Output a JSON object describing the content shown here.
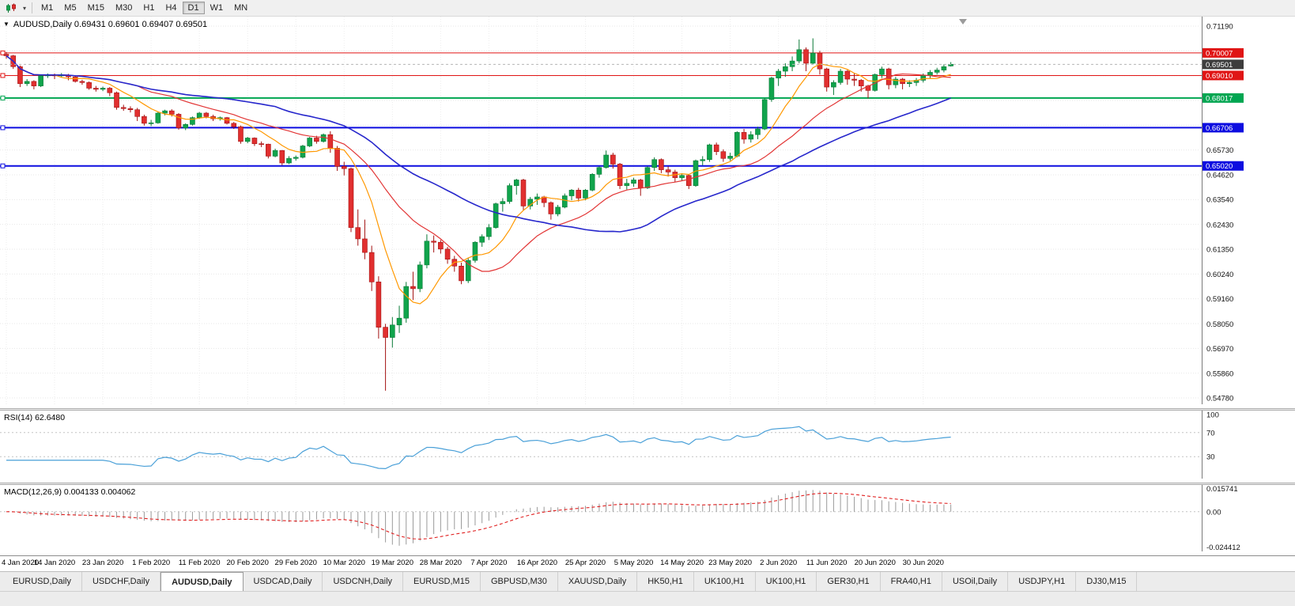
{
  "toolbar": {
    "chart_type_tool": "candlestick-chart",
    "timeframes": [
      "M1",
      "M5",
      "M15",
      "M30",
      "H1",
      "H4",
      "D1",
      "W1",
      "MN"
    ],
    "active_timeframe": "D1"
  },
  "chart": {
    "title": "AUDUSD,Daily 0.69431 0.69601 0.69407 0.69501",
    "symbol": "AUDUSD",
    "period": "Daily",
    "ohlc": {
      "open": "0.69431",
      "high": "0.69601",
      "low": "0.69407",
      "close": "0.69501"
    }
  },
  "price_axis": {
    "tick_labels": [
      "0.71190",
      "0.65730",
      "0.64620",
      "0.63540",
      "0.62430",
      "0.61350",
      "0.60240",
      "0.59160",
      "0.58050",
      "0.56970",
      "0.55860",
      "0.54780"
    ]
  },
  "time_axis": {
    "labels": [
      "4 Jan 2020",
      "14 Jan 2020",
      "23 Jan 2020",
      "1 Feb 2020",
      "11 Feb 2020",
      "20 Feb 2020",
      "29 Feb 2020",
      "10 Mar 2020",
      "19 Mar 2020",
      "28 Mar 2020",
      "7 Apr 2020",
      "16 Apr 2020",
      "25 Apr 2020",
      "5 May 2020",
      "14 May 2020",
      "23 May 2020",
      "2 Jun 2020",
      "11 Jun 2020",
      "20 Jun 2020",
      "30 Jun 2020"
    ]
  },
  "rsi": {
    "label": "RSI(14) 62.6480",
    "period": 14,
    "value": "62.6480",
    "color": "#4aa0d8",
    "ticks": [
      {
        "v": 100,
        "t": "100"
      },
      {
        "v": 70,
        "t": "70"
      },
      {
        "v": 30,
        "t": "30"
      }
    ]
  },
  "macd": {
    "label": "MACD(12,26,9) 0.004133 0.004062",
    "values": [
      "0.004133",
      "0.004062"
    ],
    "hist_color": "#9a9a9a",
    "signal_color": "#e02020",
    "ticks": [
      {
        "v": 0.015741,
        "t": "0.015741"
      },
      {
        "v": 0,
        "t": "0.00"
      },
      {
        "v": -0.024412,
        "t": "-0.024412"
      }
    ]
  },
  "tabs": [
    {
      "label": "EURUSD,Daily",
      "active": false
    },
    {
      "label": "USDCHF,Daily",
      "active": false
    },
    {
      "label": "AUDUSD,Daily",
      "active": true
    },
    {
      "label": "USDCAD,Daily",
      "active": false
    },
    {
      "label": "USDCNH,Daily",
      "active": false
    },
    {
      "label": "EURUSD,M15",
      "active": false
    },
    {
      "label": "GBPUSD,M30",
      "active": false
    },
    {
      "label": "XAUUSD,Daily",
      "active": false
    },
    {
      "label": "HK50,H1",
      "active": false
    },
    {
      "label": "UK100,H1",
      "active": false
    },
    {
      "label": "UK100,H1",
      "active": false
    },
    {
      "label": "GER30,H1",
      "active": false
    },
    {
      "label": "FRA40,H1",
      "active": false
    },
    {
      "label": "USOil,Daily",
      "active": false
    },
    {
      "label": "USDJPY,H1",
      "active": false
    },
    {
      "label": "DJ30,M15",
      "active": false
    }
  ],
  "chart_data": {
    "type": "candlestick",
    "symbol": "AUDUSD",
    "timeframe": "Daily",
    "ylim": [
      0.5478,
      0.7119
    ],
    "colors": {
      "up": "#10a44c",
      "up_border": "#0a7a37",
      "down": "#e12f2f",
      "down_border": "#a31212",
      "grid": "#e7e7e7"
    },
    "levels": [
      {
        "value": 0.70007,
        "label": "0.70007",
        "color": "#e01515",
        "width": 1
      },
      {
        "value": 0.6901,
        "label": "0.69010",
        "color": "#e01515",
        "width": 1
      },
      {
        "value": 0.68017,
        "label": "0.68017",
        "color": "#00a651",
        "width": 2
      },
      {
        "value": 0.66706,
        "label": "0.66706",
        "color": "#0d0de0",
        "width": 2
      },
      {
        "value": 0.6502,
        "label": "0.65020",
        "color": "#0d0de0",
        "width": 2
      }
    ],
    "current_price": {
      "value": 0.69501,
      "label": "0.69501",
      "box_color": "#3d3d3d"
    },
    "overlays": [
      {
        "name": "ma-fast",
        "type": "sma",
        "period": 8,
        "color": "#ff9800",
        "width": 1.2
      },
      {
        "name": "ma-mid",
        "type": "sma",
        "period": 20,
        "color": "#e23535",
        "width": 1.2
      },
      {
        "name": "ma-slow",
        "type": "sma",
        "period": 40,
        "color": "#2727cc",
        "width": 1.6
      }
    ],
    "candles": [
      [
        0.6995,
        0.7005,
        0.6975,
        0.6988
      ],
      [
        0.6988,
        0.6992,
        0.693,
        0.694
      ],
      [
        0.694,
        0.6945,
        0.685,
        0.6865
      ],
      [
        0.6865,
        0.6885,
        0.6855,
        0.6875
      ],
      [
        0.6875,
        0.688,
        0.684,
        0.6855
      ],
      [
        0.6855,
        0.6905,
        0.685,
        0.69
      ],
      [
        0.69,
        0.691,
        0.689,
        0.6903
      ],
      [
        0.6903,
        0.691,
        0.6885,
        0.69
      ],
      [
        0.69,
        0.6912,
        0.6893,
        0.6903
      ],
      [
        0.6903,
        0.6908,
        0.688,
        0.6895
      ],
      [
        0.6895,
        0.69,
        0.687,
        0.6875
      ],
      [
        0.6875,
        0.6882,
        0.686,
        0.687
      ],
      [
        0.687,
        0.6875,
        0.6838,
        0.6845
      ],
      [
        0.6845,
        0.6855,
        0.683,
        0.684
      ],
      [
        0.684,
        0.6852,
        0.6832,
        0.6845
      ],
      [
        0.6845,
        0.685,
        0.681,
        0.6825
      ],
      [
        0.6825,
        0.683,
        0.675,
        0.676
      ],
      [
        0.676,
        0.6772,
        0.6745,
        0.6755
      ],
      [
        0.6755,
        0.6765,
        0.6738,
        0.675
      ],
      [
        0.675,
        0.6758,
        0.67,
        0.672
      ],
      [
        0.672,
        0.6728,
        0.668,
        0.669
      ],
      [
        0.669,
        0.6705,
        0.6678,
        0.6692
      ],
      [
        0.6692,
        0.674,
        0.6688,
        0.6735
      ],
      [
        0.6735,
        0.675,
        0.6725,
        0.6745
      ],
      [
        0.6745,
        0.6752,
        0.672,
        0.673
      ],
      [
        0.673,
        0.6735,
        0.6662,
        0.667
      ],
      [
        0.667,
        0.669,
        0.666,
        0.6685
      ],
      [
        0.6685,
        0.672,
        0.668,
        0.6715
      ],
      [
        0.6715,
        0.674,
        0.671,
        0.6735
      ],
      [
        0.6735,
        0.674,
        0.6712,
        0.672
      ],
      [
        0.672,
        0.6728,
        0.67,
        0.671
      ],
      [
        0.671,
        0.672,
        0.6702,
        0.6715
      ],
      [
        0.6715,
        0.6718,
        0.6685,
        0.669
      ],
      [
        0.669,
        0.6696,
        0.6665,
        0.6675
      ],
      [
        0.6675,
        0.668,
        0.66,
        0.661
      ],
      [
        0.661,
        0.663,
        0.6602,
        0.6625
      ],
      [
        0.6625,
        0.6628,
        0.659,
        0.66
      ],
      [
        0.66,
        0.661,
        0.6585,
        0.6598
      ],
      [
        0.6598,
        0.66,
        0.6535,
        0.6545
      ],
      [
        0.6545,
        0.6578,
        0.654,
        0.657
      ],
      [
        0.657,
        0.6572,
        0.6505,
        0.6515
      ],
      [
        0.6515,
        0.6545,
        0.651,
        0.6535
      ],
      [
        0.6535,
        0.6548,
        0.6525,
        0.654
      ],
      [
        0.654,
        0.6595,
        0.6535,
        0.659
      ],
      [
        0.659,
        0.663,
        0.6585,
        0.6625
      ],
      [
        0.6625,
        0.6635,
        0.66,
        0.661
      ],
      [
        0.661,
        0.6645,
        0.6605,
        0.664
      ],
      [
        0.664,
        0.6655,
        0.656,
        0.658
      ],
      [
        0.658,
        0.659,
        0.648,
        0.65
      ],
      [
        0.65,
        0.652,
        0.646,
        0.649
      ],
      [
        0.649,
        0.6495,
        0.621,
        0.623
      ],
      [
        0.623,
        0.631,
        0.615,
        0.618
      ],
      [
        0.618,
        0.6265,
        0.609,
        0.612
      ],
      [
        0.612,
        0.615,
        0.595,
        0.599
      ],
      [
        0.599,
        0.6015,
        0.574,
        0.579
      ],
      [
        0.579,
        0.5805,
        0.551,
        0.5745
      ],
      [
        0.5745,
        0.5835,
        0.57,
        0.58
      ],
      [
        0.58,
        0.5885,
        0.5765,
        0.583
      ],
      [
        0.583,
        0.599,
        0.581,
        0.597
      ],
      [
        0.597,
        0.6035,
        0.591,
        0.596
      ],
      [
        0.596,
        0.608,
        0.5945,
        0.6065
      ],
      [
        0.6065,
        0.62,
        0.605,
        0.617
      ],
      [
        0.617,
        0.6195,
        0.612,
        0.6165
      ],
      [
        0.6165,
        0.6175,
        0.6115,
        0.6135
      ],
      [
        0.6135,
        0.6145,
        0.607,
        0.609
      ],
      [
        0.609,
        0.6105,
        0.6035,
        0.606
      ],
      [
        0.606,
        0.6075,
        0.598,
        0.5995
      ],
      [
        0.5995,
        0.6095,
        0.5985,
        0.6085
      ],
      [
        0.6085,
        0.617,
        0.6075,
        0.6165
      ],
      [
        0.6165,
        0.62,
        0.6145,
        0.619
      ],
      [
        0.619,
        0.6245,
        0.6175,
        0.623
      ],
      [
        0.623,
        0.634,
        0.6225,
        0.6335
      ],
      [
        0.6335,
        0.636,
        0.63,
        0.6345
      ],
      [
        0.6345,
        0.6425,
        0.6335,
        0.6415
      ],
      [
        0.6415,
        0.6445,
        0.6375,
        0.644
      ],
      [
        0.644,
        0.6445,
        0.6305,
        0.6325
      ],
      [
        0.6325,
        0.6365,
        0.631,
        0.6355
      ],
      [
        0.6355,
        0.638,
        0.633,
        0.6365
      ],
      [
        0.6365,
        0.637,
        0.632,
        0.634
      ],
      [
        0.634,
        0.6345,
        0.6265,
        0.629
      ],
      [
        0.629,
        0.633,
        0.628,
        0.632
      ],
      [
        0.632,
        0.638,
        0.6315,
        0.637
      ],
      [
        0.637,
        0.64,
        0.635,
        0.6395
      ],
      [
        0.6395,
        0.6405,
        0.6345,
        0.636
      ],
      [
        0.636,
        0.64,
        0.635,
        0.6395
      ],
      [
        0.6395,
        0.647,
        0.639,
        0.6465
      ],
      [
        0.6465,
        0.65,
        0.645,
        0.6495
      ],
      [
        0.6495,
        0.657,
        0.649,
        0.655
      ],
      [
        0.655,
        0.656,
        0.649,
        0.651
      ],
      [
        0.651,
        0.6515,
        0.64,
        0.6415
      ],
      [
        0.6415,
        0.6445,
        0.6398,
        0.6425
      ],
      [
        0.6425,
        0.645,
        0.641,
        0.644
      ],
      [
        0.644,
        0.6445,
        0.637,
        0.6405
      ],
      [
        0.6405,
        0.65,
        0.64,
        0.6495
      ],
      [
        0.6495,
        0.654,
        0.648,
        0.653
      ],
      [
        0.653,
        0.6535,
        0.647,
        0.6485
      ],
      [
        0.6485,
        0.65,
        0.6455,
        0.6475
      ],
      [
        0.6475,
        0.6485,
        0.643,
        0.645
      ],
      [
        0.645,
        0.647,
        0.6435,
        0.646
      ],
      [
        0.646,
        0.6465,
        0.64,
        0.6415
      ],
      [
        0.6415,
        0.653,
        0.641,
        0.6525
      ],
      [
        0.6525,
        0.6545,
        0.6505,
        0.653
      ],
      [
        0.653,
        0.66,
        0.652,
        0.6595
      ],
      [
        0.6595,
        0.6605,
        0.655,
        0.6565
      ],
      [
        0.6565,
        0.6575,
        0.652,
        0.6535
      ],
      [
        0.6535,
        0.656,
        0.6525,
        0.6545
      ],
      [
        0.6545,
        0.6655,
        0.654,
        0.665
      ],
      [
        0.665,
        0.6665,
        0.66,
        0.662
      ],
      [
        0.662,
        0.6655,
        0.6605,
        0.664
      ],
      [
        0.664,
        0.6675,
        0.662,
        0.6665
      ],
      [
        0.6665,
        0.68,
        0.666,
        0.6795
      ],
      [
        0.6795,
        0.6895,
        0.6785,
        0.689
      ],
      [
        0.689,
        0.693,
        0.6855,
        0.692
      ],
      [
        0.692,
        0.6955,
        0.6895,
        0.694
      ],
      [
        0.694,
        0.6985,
        0.692,
        0.6965
      ],
      [
        0.6965,
        0.706,
        0.6955,
        0.7015
      ],
      [
        0.7015,
        0.7025,
        0.692,
        0.6955
      ],
      [
        0.6955,
        0.7065,
        0.695,
        0.7
      ],
      [
        0.7,
        0.701,
        0.6905,
        0.693
      ],
      [
        0.693,
        0.6935,
        0.683,
        0.685
      ],
      [
        0.685,
        0.688,
        0.6815,
        0.687
      ],
      [
        0.687,
        0.693,
        0.686,
        0.692
      ],
      [
        0.692,
        0.6925,
        0.686,
        0.6885
      ],
      [
        0.6885,
        0.691,
        0.6855,
        0.688
      ],
      [
        0.688,
        0.6885,
        0.683,
        0.6855
      ],
      [
        0.6855,
        0.686,
        0.68,
        0.6835
      ],
      [
        0.6835,
        0.691,
        0.683,
        0.6905
      ],
      [
        0.6905,
        0.694,
        0.689,
        0.693
      ],
      [
        0.693,
        0.6935,
        0.684,
        0.686
      ],
      [
        0.686,
        0.6895,
        0.6845,
        0.6885
      ],
      [
        0.6885,
        0.689,
        0.684,
        0.6865
      ],
      [
        0.6865,
        0.688,
        0.685,
        0.687
      ],
      [
        0.687,
        0.689,
        0.6855,
        0.688
      ],
      [
        0.688,
        0.691,
        0.687,
        0.69
      ],
      [
        0.69,
        0.6925,
        0.689,
        0.6915
      ],
      [
        0.6915,
        0.6935,
        0.6905,
        0.6925
      ],
      [
        0.6925,
        0.695,
        0.6915,
        0.694
      ],
      [
        0.69431,
        0.69601,
        0.69407,
        0.69501
      ]
    ]
  }
}
